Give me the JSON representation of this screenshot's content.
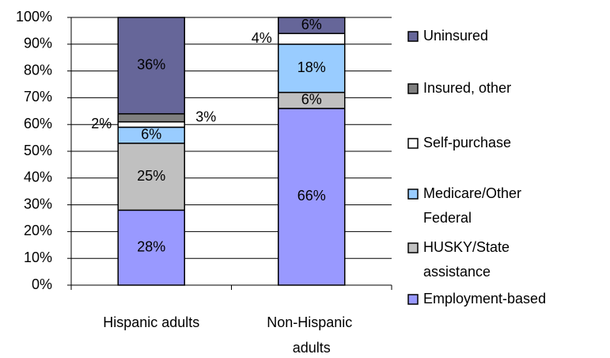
{
  "chart_data": {
    "type": "stacked-bar",
    "categories": [
      "Hispanic adults",
      "Non-Hispanic adults"
    ],
    "series": [
      {
        "name": "Employment-based",
        "color": "#9999ff",
        "values": [
          28,
          66
        ],
        "value_labels": [
          "28%",
          "66%"
        ]
      },
      {
        "name": "HUSKY/State assistance",
        "color": "#c0c0c0",
        "values": [
          25,
          6
        ],
        "value_labels": [
          "25%",
          "6%"
        ]
      },
      {
        "name": "Medicare/Other Federal",
        "color": "#99ccff",
        "values": [
          6,
          18
        ],
        "value_labels": [
          "6%",
          "18%"
        ]
      },
      {
        "name": "Self-purchase",
        "color": "#ffffff",
        "values": [
          2,
          4
        ],
        "value_labels": [
          "2%",
          "4%"
        ]
      },
      {
        "name": "Insured, other",
        "color": "#808080",
        "values": [
          3,
          0
        ],
        "value_labels": [
          "3%",
          null
        ]
      },
      {
        "name": "Uninsured",
        "color": "#666699",
        "values": [
          36,
          6
        ],
        "value_labels": [
          "36%",
          "6%"
        ]
      }
    ],
    "ylim": [
      0,
      100
    ],
    "yticks": [
      {
        "value": 0,
        "label": "0%"
      },
      {
        "value": 10,
        "label": "10%"
      },
      {
        "value": 20,
        "label": "20%"
      },
      {
        "value": 30,
        "label": "30%"
      },
      {
        "value": 40,
        "label": "40%"
      },
      {
        "value": 50,
        "label": "50%"
      },
      {
        "value": 60,
        "label": "60%"
      },
      {
        "value": 70,
        "label": "70%"
      },
      {
        "value": 80,
        "label": "80%"
      },
      {
        "value": 90,
        "label": "90%"
      },
      {
        "value": 100,
        "label": "100%"
      }
    ],
    "grid": true,
    "legend": "right"
  }
}
